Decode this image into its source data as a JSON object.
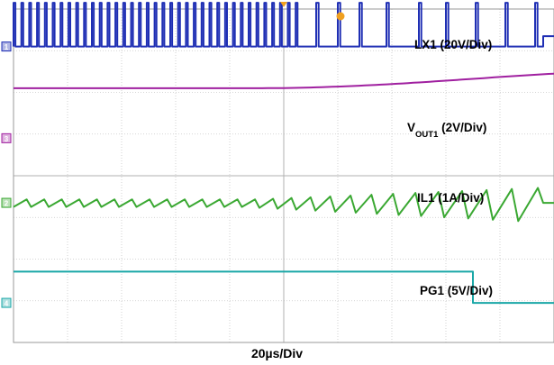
{
  "chart_data": {
    "type": "line",
    "timebase": "20µs/Div",
    "x_divisions": 10,
    "y_divisions": 8,
    "grid": true,
    "channels": [
      {
        "name": "LX1 (20V/Div)",
        "name_main": "LX1 (20V/Div)",
        "name_sub": "",
        "name_tail": "",
        "color": "#1f2fb4",
        "marker": "1",
        "kind": "switching",
        "baseline_div": 7.1,
        "amplitude_div": 1.05,
        "dense_until_us": 105,
        "dense_period_us": 2.9,
        "sparse_pulse_times_us": [
          112,
          120,
          128,
          138,
          150,
          160,
          171,
          182,
          193
        ],
        "stop_us": 196,
        "step_after_stop_div": 0.25
      },
      {
        "name": "VOUT1 (2V/Div)",
        "name_main": "V",
        "name_sub": "OUT1",
        "name_tail": " (2V/Div)",
        "color": "#a020a0",
        "marker": "3",
        "kind": "ramp",
        "start_div": 6.1,
        "ramp_start_us": 90,
        "ramp_end_us": 250,
        "end_div": 6.55
      },
      {
        "name": "IL1 (1A/Div)",
        "name_main": "IL1 (1A/Div)",
        "name_sub": "",
        "name_tail": "",
        "color": "#3aa832",
        "marker": "2",
        "kind": "inductor",
        "baseline_div": 3.35,
        "ripple_start_div": 0.18,
        "ripple_grow_start_us": 85,
        "ripple_max_div": 0.85,
        "stop_us": 196
      },
      {
        "name": "PG1 (5V/Div)",
        "name_main": "PG1 (5V/Div)",
        "name_sub": "",
        "name_tail": "",
        "color": "#1aa7a7",
        "marker": "4",
        "kind": "step",
        "high_div": 1.7,
        "low_div": 0.95,
        "step_us": 170
      }
    ]
  }
}
